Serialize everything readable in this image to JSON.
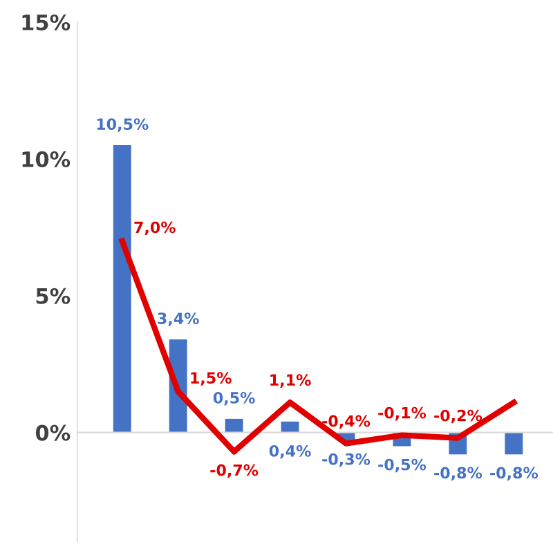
{
  "chart_data": {
    "type": "bar",
    "categories": [
      null,
      null,
      null,
      null,
      null,
      null,
      null,
      null
    ],
    "ylim": [
      -4,
      15
    ],
    "yticks": [
      {
        "value": 0,
        "label": "0%"
      },
      {
        "value": 5,
        "label": "5%"
      },
      {
        "value": 10,
        "label": "10%"
      },
      {
        "value": 15,
        "label": "15%"
      }
    ],
    "legend": false,
    "series": [
      {
        "color": "#4472c4",
        "values": [
          10.5,
          3.4,
          0.5,
          0.4,
          -0.3,
          -0.5,
          -0.8,
          -0.8
        ],
        "value_labels": [
          "10,5%",
          "3,4%",
          "0,5%",
          "0,4%",
          "-0,3%",
          "-0,5%",
          "-0,8%",
          "-0,8%"
        ]
      },
      {
        "type": "line",
        "color": "#e00000",
        "marker": "none",
        "values": [
          7.0,
          1.5,
          -0.7,
          1.1,
          -0.4,
          -0.1,
          -0.2,
          1.1
        ],
        "value_labels": [
          "7,0%",
          "1,5%",
          "-0,7%",
          "1,1%",
          "-0,4%",
          "-0,1%",
          "-0,2%",
          null
        ]
      }
    ]
  }
}
